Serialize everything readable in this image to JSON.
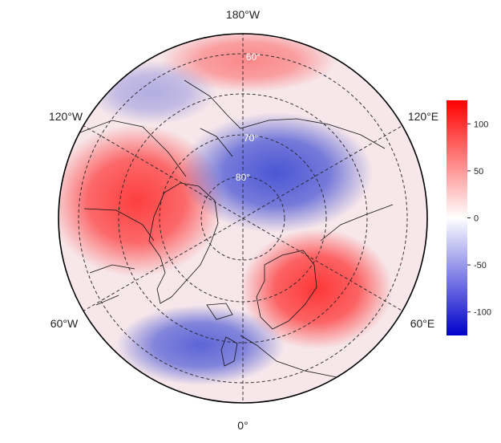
{
  "map": {
    "projection": "north-polar-stereographic",
    "longitude_labels": {
      "top": "180°W",
      "bottom": "0°",
      "upper_left": "120°W",
      "upper_right": "120°E",
      "lower_left": "60°W",
      "lower_right": "60°E"
    },
    "latitude_labels": {
      "inner": "80°",
      "middle": "70°",
      "outer": "60°"
    },
    "graticule_style": "dashed",
    "coastlines": true
  },
  "colorbar": {
    "ticks": [
      "100",
      "50",
      "0",
      "-50",
      "-100"
    ],
    "min": -125,
    "max": 125,
    "colors": {
      "high": "#ff0000",
      "mid": "#ffffff",
      "low": "#0000cc"
    }
  },
  "anomaly_field": {
    "description_units": "colorbar units",
    "features": [
      {
        "sign": "positive",
        "location": "Greenland / Canadian Arctic",
        "peak": 105
      },
      {
        "sign": "positive",
        "location": "Scandinavia / Barents Sea",
        "peak": 110
      },
      {
        "sign": "positive",
        "location": "North Pacific (outer rim)",
        "peak": 60
      },
      {
        "sign": "negative",
        "location": "Central Arctic / Siberia",
        "peak": -100
      },
      {
        "sign": "negative",
        "location": "North Atlantic",
        "peak": -90
      },
      {
        "sign": "negative",
        "location": "Alaska / Bering",
        "peak": -40
      }
    ]
  }
}
